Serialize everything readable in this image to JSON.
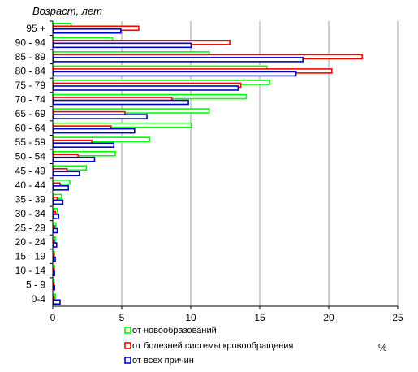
{
  "chart_data": {
    "type": "bar",
    "orientation": "horizontal",
    "title": "",
    "ylabel": "Возраст, лет",
    "xlabel": "%",
    "xlim": [
      0,
      25
    ],
    "xticks": [
      0,
      5,
      10,
      15,
      20,
      25
    ],
    "grid": "vertical",
    "legend_position": "bottom",
    "categories": [
      "95 +",
      "90 - 94",
      "85 - 89",
      "80 - 84",
      "75 - 79",
      "70 - 74",
      "65 - 69",
      "60 - 64",
      "55 - 59",
      "50 - 54",
      "45 - 49",
      "40 - 44",
      "35 - 39",
      "30 - 34",
      "25 - 29",
      "20 - 24",
      "15 - 19",
      "10 - 14",
      "5 - 9",
      "0-4"
    ],
    "series": [
      {
        "name": "от новообразований",
        "color": "#00ff00",
        "values": [
          1.3,
          4.3,
          11.3,
          15.5,
          15.7,
          14.0,
          11.3,
          10.0,
          7.0,
          4.5,
          2.4,
          1.2,
          0.6,
          0.3,
          0.2,
          0.15,
          0.1,
          0.1,
          0.05,
          0.15
        ]
      },
      {
        "name": "от болезней  системы кровообращения",
        "color": "#ff0000",
        "values": [
          6.2,
          12.8,
          22.4,
          20.2,
          13.6,
          8.6,
          5.2,
          4.2,
          2.8,
          1.8,
          1.0,
          0.5,
          0.3,
          0.15,
          0.1,
          0.1,
          0.05,
          0.05,
          0.02,
          0.05
        ]
      },
      {
        "name": "от всех причин",
        "color": "#0000cc",
        "values": [
          4.9,
          10.0,
          18.1,
          17.6,
          13.4,
          9.8,
          6.8,
          5.9,
          4.4,
          3.0,
          1.9,
          1.1,
          0.7,
          0.4,
          0.3,
          0.25,
          0.15,
          0.1,
          0.1,
          0.5
        ]
      }
    ]
  }
}
